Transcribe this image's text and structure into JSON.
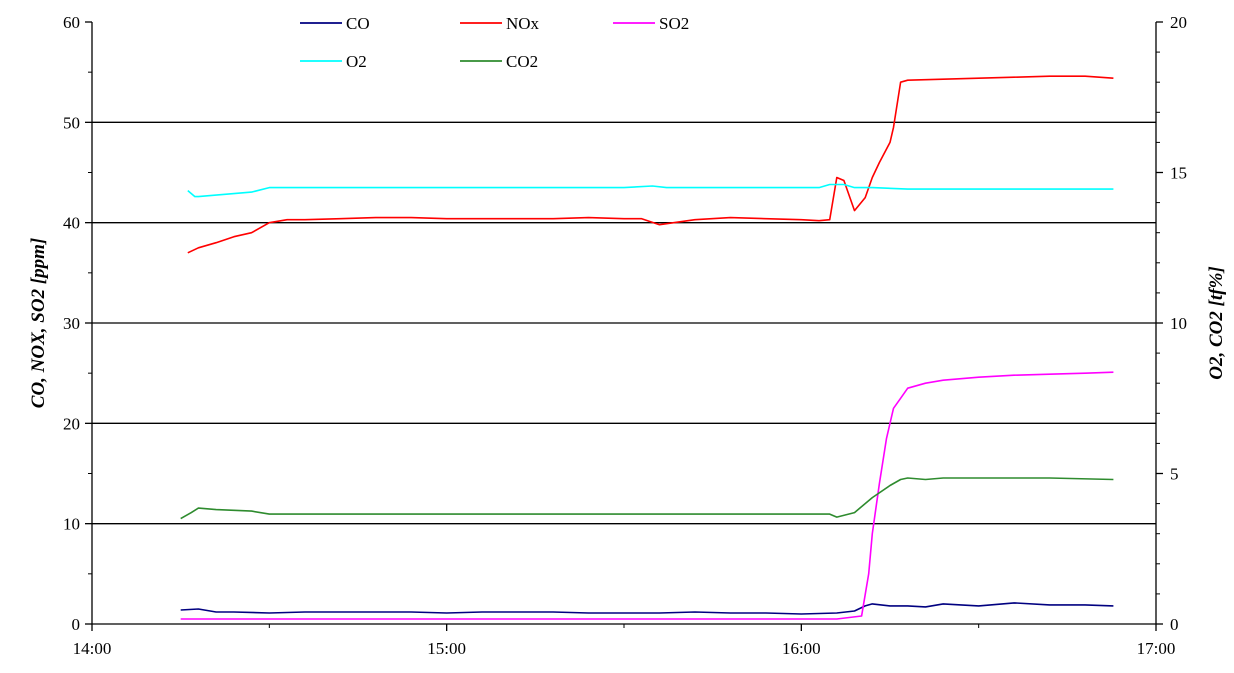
{
  "chart_data": {
    "type": "line",
    "title": "",
    "xlabel": "",
    "ylabel_left": "CO, NOX, SO2  [ppm]",
    "ylabel_right": "O2,  CO2 [tf%]",
    "x_unit": "hours",
    "xlim": [
      14.0,
      17.0
    ],
    "x_ticks": [
      14,
      15,
      16,
      17
    ],
    "x_tick_labels": [
      "14:00",
      "15:00",
      "16:00",
      "17:00"
    ],
    "ylim_left": [
      0,
      60
    ],
    "y_ticks_left": [
      0,
      10,
      20,
      30,
      40,
      50,
      60
    ],
    "y_tick_labels_left": [
      "0",
      "10",
      "20",
      "30",
      "40",
      "50",
      "60"
    ],
    "ylim_right": [
      0,
      20
    ],
    "y_ticks_right": [
      0,
      5,
      10,
      15,
      20
    ],
    "y_tick_labels_right": [
      "0",
      "5",
      "10",
      "15",
      "20"
    ],
    "grid": "horizontal",
    "legend_position": "top",
    "series": [
      {
        "name": "CO",
        "axis": "left",
        "color": "#000080",
        "x": [
          14.25,
          14.3,
          14.35,
          14.4,
          14.5,
          14.6,
          14.75,
          14.9,
          15.0,
          15.1,
          15.2,
          15.3,
          15.4,
          15.5,
          15.6,
          15.7,
          15.8,
          15.9,
          16.0,
          16.1,
          16.15,
          16.18,
          16.2,
          16.25,
          16.3,
          16.35,
          16.4,
          16.45,
          16.5,
          16.6,
          16.7,
          16.8,
          16.88
        ],
        "values": [
          1.4,
          1.5,
          1.2,
          1.2,
          1.1,
          1.2,
          1.2,
          1.2,
          1.1,
          1.2,
          1.2,
          1.2,
          1.1,
          1.1,
          1.1,
          1.2,
          1.1,
          1.1,
          1.0,
          1.1,
          1.3,
          1.8,
          2.0,
          1.8,
          1.8,
          1.7,
          2.0,
          1.9,
          1.8,
          2.1,
          1.9,
          1.9,
          1.8
        ]
      },
      {
        "name": "NOx",
        "axis": "left",
        "color": "#FF0000",
        "x": [
          14.27,
          14.3,
          14.35,
          14.4,
          14.45,
          14.5,
          14.55,
          14.6,
          14.7,
          14.8,
          14.9,
          15.0,
          15.1,
          15.2,
          15.3,
          15.4,
          15.5,
          15.55,
          15.6,
          15.7,
          15.8,
          15.9,
          16.0,
          16.05,
          16.08,
          16.1,
          16.12,
          16.15,
          16.18,
          16.2,
          16.22,
          16.25,
          16.26,
          16.28,
          16.3,
          16.4,
          16.5,
          16.6,
          16.7,
          16.8,
          16.88
        ],
        "values": [
          37.0,
          37.5,
          38.0,
          38.6,
          39.0,
          40.0,
          40.3,
          40.3,
          40.4,
          40.5,
          40.5,
          40.4,
          40.4,
          40.4,
          40.4,
          40.5,
          40.4,
          40.4,
          39.8,
          40.3,
          40.5,
          40.4,
          40.3,
          40.2,
          40.3,
          44.5,
          44.2,
          41.2,
          42.5,
          44.5,
          46.0,
          48.0,
          49.5,
          54.0,
          54.2,
          54.3,
          54.4,
          54.5,
          54.6,
          54.6,
          54.4
        ]
      },
      {
        "name": "SO2",
        "axis": "left",
        "color": "#FF00FF",
        "x": [
          14.25,
          14.5,
          14.75,
          15.0,
          15.25,
          15.5,
          15.75,
          16.0,
          16.1,
          16.17,
          16.19,
          16.2,
          16.22,
          16.24,
          16.26,
          16.28,
          16.3,
          16.35,
          16.4,
          16.5,
          16.6,
          16.7,
          16.8,
          16.88
        ],
        "values": [
          0.5,
          0.5,
          0.5,
          0.5,
          0.5,
          0.5,
          0.5,
          0.5,
          0.5,
          0.8,
          5.0,
          9.0,
          14.0,
          18.5,
          21.5,
          22.5,
          23.5,
          24.0,
          24.3,
          24.6,
          24.8,
          24.9,
          25.0,
          25.1
        ]
      },
      {
        "name": "O2",
        "axis": "right",
        "color": "#00FFFF",
        "x": [
          14.27,
          14.29,
          14.3,
          14.35,
          14.4,
          14.45,
          14.5,
          15.0,
          15.5,
          15.58,
          15.62,
          16.0,
          16.05,
          16.08,
          16.12,
          16.15,
          16.2,
          16.3,
          16.5,
          16.88
        ],
        "values": [
          14.4,
          14.2,
          14.2,
          14.25,
          14.3,
          14.35,
          14.5,
          14.5,
          14.5,
          14.55,
          14.5,
          14.5,
          14.5,
          14.6,
          14.6,
          14.5,
          14.5,
          14.45,
          14.45,
          14.45
        ]
      },
      {
        "name": "CO2",
        "axis": "right",
        "color": "#2E8B2E",
        "x": [
          14.25,
          14.28,
          14.3,
          14.35,
          14.45,
          14.5,
          14.75,
          15.0,
          15.5,
          16.0,
          16.08,
          16.1,
          16.15,
          16.2,
          16.25,
          16.28,
          16.3,
          16.35,
          16.4,
          16.5,
          16.7,
          16.88
        ],
        "values": [
          3.5,
          3.7,
          3.85,
          3.8,
          3.75,
          3.65,
          3.65,
          3.65,
          3.65,
          3.65,
          3.65,
          3.55,
          3.7,
          4.2,
          4.6,
          4.8,
          4.85,
          4.8,
          4.85,
          4.85,
          4.85,
          4.8
        ]
      }
    ]
  }
}
